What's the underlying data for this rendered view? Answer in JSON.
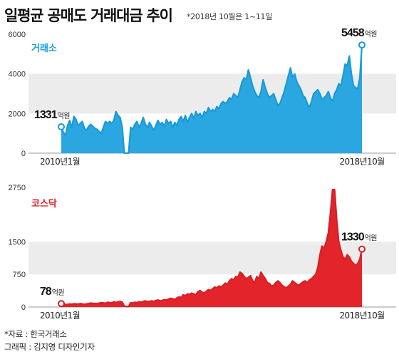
{
  "title": "일평균 공매도 거래대금 추이",
  "note": "*2018년 10월은 1~11일",
  "footer": {
    "source": "*자료 : 한국거래소",
    "credit": "그래픽 : 김지영 디자인기자"
  },
  "colors": {
    "kospi": "#1a9bd7",
    "kospi_fill": "#2aa6e0",
    "kosdaq": "#d81f26",
    "kosdaq_fill": "#e3242b",
    "band": "#ececec"
  },
  "chart_data": [
    {
      "type": "area",
      "name": "거래소",
      "x_start": "2010년1월",
      "x_end": "2018년10월",
      "ylim": [
        0,
        6000
      ],
      "yticks": [
        0,
        2000,
        4000,
        6000
      ],
      "grid": "horizontal bands",
      "first_label": "1331",
      "last_label": "5458",
      "unit": "억원",
      "values": [
        1331,
        1050,
        900,
        1400,
        1650,
        1300,
        1850,
        1700,
        1400,
        1500,
        1600,
        1250,
        1150,
        1350,
        1450,
        1350,
        1250,
        1200,
        1100,
        1000,
        1300,
        1600,
        1500,
        1600,
        1500,
        1650,
        2100,
        1900,
        1800,
        1300,
        -100,
        -100,
        -100,
        1300,
        1200,
        1450,
        1600,
        1300,
        1500,
        1800,
        1450,
        1300,
        1550,
        1350,
        1150,
        1400,
        1650,
        1450,
        1550,
        1350,
        1700,
        1500,
        1600,
        1300,
        1550,
        1400,
        1700,
        1850,
        1600,
        1900,
        1550,
        1800,
        2000,
        1750,
        2100,
        1900,
        2000,
        1800,
        2100,
        2000,
        2300,
        2100,
        2200,
        2100,
        2350,
        2250,
        2500,
        2600,
        2500,
        2600,
        2800,
        2700,
        3000,
        2900,
        2800,
        3200,
        3600,
        3800,
        3700,
        4200,
        3800,
        3400,
        3100,
        2900,
        2800,
        3100,
        3700,
        3300,
        3000,
        2800,
        2900,
        3000,
        2700,
        2400,
        2500,
        2800,
        3100,
        3500,
        3900,
        4300,
        3800,
        4000,
        3600,
        3400,
        3200,
        2900,
        2800,
        2500,
        2300,
        2600,
        3000,
        3100,
        3200,
        3000,
        2700,
        2800,
        2900,
        3100,
        2800,
        2600,
        3000,
        3200,
        3500,
        3400,
        3900,
        4500,
        4400,
        4900,
        4000,
        3400,
        3300,
        3250,
        3800,
        5458
      ]
    },
    {
      "type": "area",
      "name": "코스닥",
      "x_start": "2010년1월",
      "x_end": "2018년10월",
      "ylim": [
        0,
        2750
      ],
      "yticks": [
        0,
        750,
        1500,
        2750
      ],
      "grid": "horizontal bands",
      "first_label": "78",
      "last_label": "1330",
      "unit": "억원",
      "values": [
        78,
        65,
        60,
        55,
        70,
        60,
        75,
        70,
        65,
        80,
        70,
        60,
        70,
        80,
        90,
        85,
        80,
        75,
        90,
        100,
        95,
        85,
        110,
        100,
        95,
        120,
        105,
        115,
        130,
        110,
        20,
        15,
        10,
        100,
        90,
        110,
        100,
        120,
        110,
        130,
        140,
        120,
        130,
        140,
        130,
        150,
        160,
        140,
        150,
        170,
        160,
        180,
        200,
        190,
        170,
        210,
        230,
        220,
        280,
        260,
        300,
        290,
        320,
        300,
        280,
        350,
        380,
        340,
        320,
        360,
        400,
        380,
        420,
        460,
        440,
        480,
        460,
        500,
        550,
        520,
        600,
        650,
        620,
        700,
        680,
        800,
        770,
        700,
        650,
        680,
        720,
        600,
        570,
        700,
        650,
        800,
        720,
        650,
        560,
        540,
        480,
        500,
        560,
        600,
        560,
        500,
        460,
        440,
        480,
        520,
        600,
        560,
        520,
        500,
        540,
        580,
        600,
        560,
        620,
        650,
        700,
        750,
        900,
        1200,
        1400,
        1350,
        1500,
        1700,
        2150,
        2700,
        2700,
        2000,
        1500,
        1300,
        1150,
        1100,
        1200,
        1150,
        1050,
        1000,
        950,
        1000,
        1100,
        1330
      ]
    }
  ]
}
